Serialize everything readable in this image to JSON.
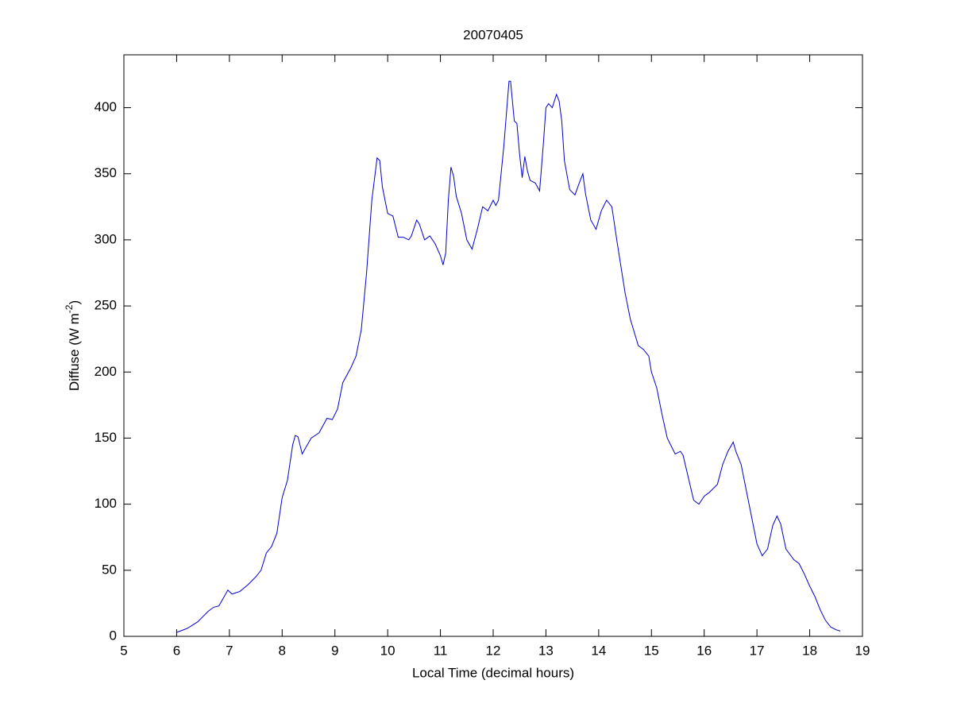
{
  "chart_data": {
    "type": "line",
    "title": "20070405",
    "xlabel": "Local Time (decimal hours)",
    "ylabel": {
      "text": "Diffuse (W m",
      "superscript": "-2",
      "after": ")"
    },
    "xlim": [
      5,
      19
    ],
    "xticks": [
      5,
      6,
      7,
      8,
      9,
      10,
      11,
      12,
      13,
      14,
      15,
      16,
      17,
      18,
      19
    ],
    "ylim": [
      0,
      440
    ],
    "yticks": [
      0,
      50,
      100,
      150,
      200,
      250,
      300,
      350,
      400
    ],
    "grid": false,
    "box": true,
    "x": [
      6.0,
      6.2,
      6.4,
      6.6,
      6.7,
      6.8,
      6.9,
      6.97,
      7.05,
      7.2,
      7.35,
      7.5,
      7.6,
      7.7,
      7.8,
      7.9,
      8.0,
      8.1,
      8.2,
      8.25,
      8.3,
      8.38,
      8.45,
      8.55,
      8.7,
      8.85,
      8.95,
      9.05,
      9.15,
      9.3,
      9.4,
      9.5,
      9.6,
      9.7,
      9.8,
      9.85,
      9.9,
      10.0,
      10.1,
      10.2,
      10.3,
      10.4,
      10.45,
      10.55,
      10.6,
      10.7,
      10.8,
      10.9,
      11.0,
      11.05,
      11.1,
      11.15,
      11.2,
      11.25,
      11.3,
      11.4,
      11.5,
      11.6,
      11.7,
      11.8,
      11.9,
      12.0,
      12.05,
      12.1,
      12.2,
      12.3,
      12.33,
      12.4,
      12.45,
      12.5,
      12.55,
      12.6,
      12.65,
      12.7,
      12.8,
      12.88,
      12.95,
      13.0,
      13.05,
      13.12,
      13.2,
      13.25,
      13.3,
      13.35,
      13.45,
      13.55,
      13.65,
      13.7,
      13.75,
      13.85,
      13.95,
      14.05,
      14.15,
      14.25,
      14.35,
      14.5,
      14.6,
      14.75,
      14.85,
      14.95,
      15.0,
      15.1,
      15.2,
      15.3,
      15.45,
      15.55,
      15.6,
      15.7,
      15.8,
      15.9,
      16.0,
      16.1,
      16.25,
      16.35,
      16.45,
      16.55,
      16.6,
      16.7,
      16.8,
      16.9,
      17.0,
      17.1,
      17.2,
      17.3,
      17.38,
      17.45,
      17.55,
      17.7,
      17.8,
      17.9,
      18.0,
      18.1,
      18.2,
      18.3,
      18.4,
      18.5,
      18.58
    ],
    "series": [
      {
        "color": "#0000cc",
        "values": [
          3,
          6,
          11,
          19,
          22,
          23,
          30,
          35,
          32,
          34,
          39,
          45,
          50,
          63,
          68,
          78,
          105,
          118,
          145,
          152,
          151,
          138,
          143,
          150,
          154,
          165,
          164,
          172,
          192,
          203,
          212,
          232,
          275,
          330,
          362,
          360,
          340,
          320,
          318,
          302,
          302,
          300,
          303,
          315,
          312,
          300,
          303,
          297,
          288,
          281,
          290,
          330,
          355,
          348,
          333,
          320,
          300,
          293,
          308,
          325,
          322,
          330,
          326,
          330,
          370,
          420,
          420,
          390,
          388,
          365,
          347,
          363,
          352,
          345,
          343,
          337,
          372,
          400,
          403,
          400,
          410,
          405,
          390,
          360,
          338,
          334,
          345,
          350,
          335,
          315,
          308,
          322,
          330,
          325,
          298,
          260,
          240,
          220,
          217,
          212,
          200,
          188,
          168,
          150,
          138,
          140,
          137,
          120,
          103,
          100,
          106,
          109,
          115,
          130,
          140,
          147,
          140,
          130,
          110,
          90,
          70,
          61,
          66,
          84,
          91,
          85,
          66,
          58,
          55,
          47,
          38,
          30,
          20,
          12,
          7,
          5,
          4
        ]
      }
    ]
  }
}
